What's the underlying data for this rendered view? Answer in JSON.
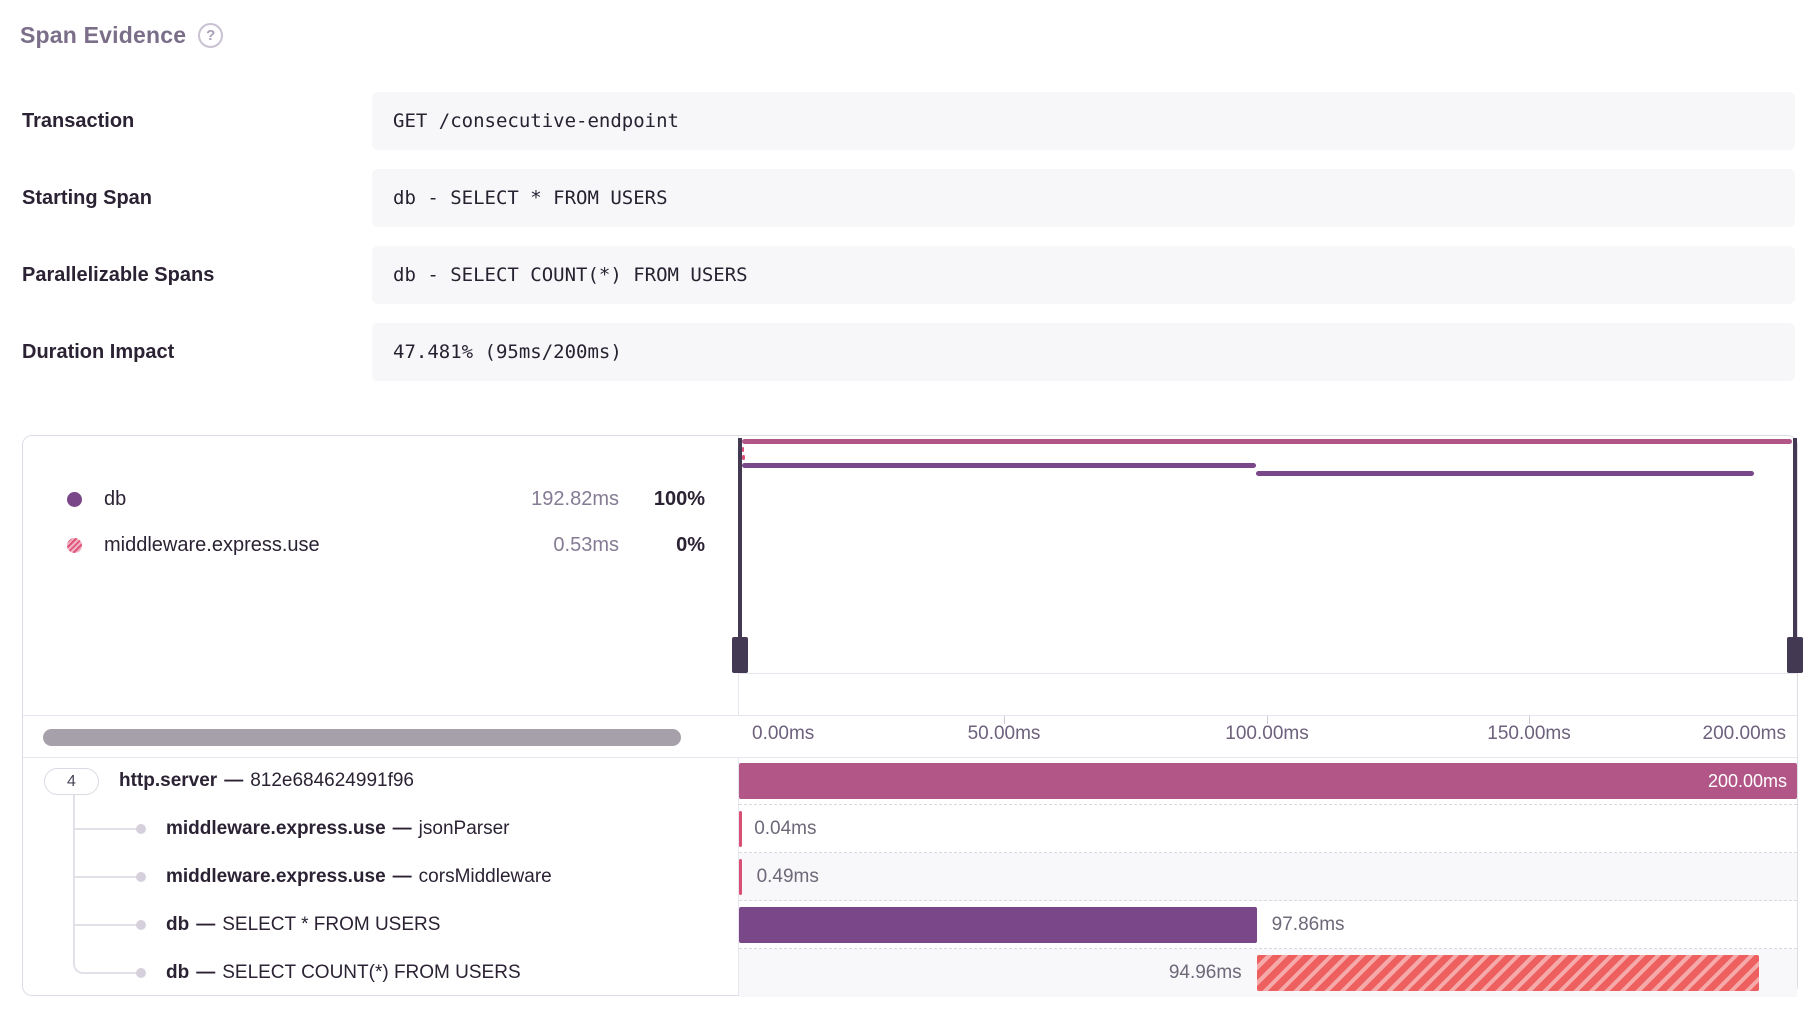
{
  "header": {
    "title": "Span Evidence",
    "help_glyph": "?"
  },
  "evidence_rows": [
    {
      "label": "Transaction",
      "value": "GET /consecutive-endpoint"
    },
    {
      "label": "Starting Span",
      "value": "db - SELECT * FROM USERS"
    },
    {
      "label": "Parallelizable Spans",
      "value": "db - SELECT COUNT(*) FROM USERS"
    },
    {
      "label": "Duration Impact",
      "value": "47.481% (95ms/200ms)"
    }
  ],
  "legend": {
    "items": [
      {
        "name": "db",
        "duration": "192.82ms",
        "percent": "100%",
        "color": "#7a4788"
      },
      {
        "name": "middleware.express.use",
        "duration": "0.53ms",
        "percent": "0%",
        "color": "#e0557a"
      }
    ]
  },
  "axis": {
    "ticks": [
      "0.00ms",
      "50.00ms",
      "100.00ms",
      "150.00ms",
      "200.00ms"
    ]
  },
  "tree": {
    "root_count": "4",
    "separator": "—"
  },
  "colors": {
    "http_server_bar": "#b25687",
    "db_bar": "#7a4788",
    "middleware_bar": "#d94f76",
    "blocked_stripe_red": "#ee5f5f",
    "blocked_stripe_pink": "#f5a9a9",
    "minimap_handle": "#443952"
  },
  "chart_data": {
    "type": "waterfall",
    "unit": "ms",
    "total_ms": 200,
    "axis_range_ms": [
      0,
      200
    ],
    "spans": [
      {
        "op": "http.server",
        "description": "812e684624991f96",
        "start_ms": 0,
        "duration_ms": 200,
        "duration_label": "200.00ms",
        "style": "magenta",
        "label_placement": "inside"
      },
      {
        "op": "middleware.express.use",
        "description": "jsonParser",
        "start_ms": 0,
        "duration_ms": 0.04,
        "duration_label": "0.04ms",
        "style": "pink",
        "label_placement": "right"
      },
      {
        "op": "middleware.express.use",
        "description": "corsMiddleware",
        "start_ms": 0,
        "duration_ms": 0.49,
        "duration_label": "0.49ms",
        "style": "pink",
        "label_placement": "right"
      },
      {
        "op": "db",
        "description": "SELECT * FROM USERS",
        "start_ms": 0,
        "duration_ms": 97.86,
        "duration_label": "97.86ms",
        "style": "purple",
        "label_placement": "right"
      },
      {
        "op": "db",
        "description": "SELECT COUNT(*) FROM USERS",
        "start_ms": 97.86,
        "duration_ms": 94.96,
        "duration_label": "94.96ms",
        "style": "striped-red",
        "label_placement": "left"
      }
    ]
  }
}
